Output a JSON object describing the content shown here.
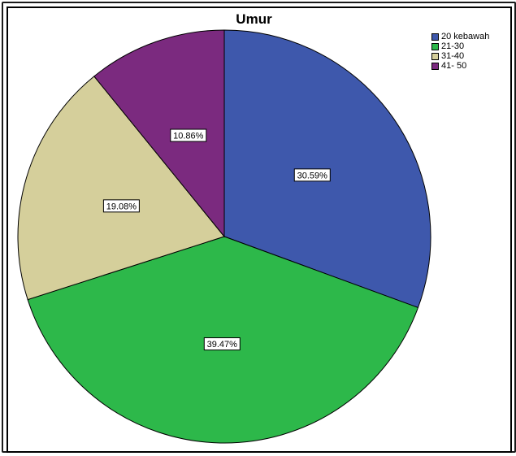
{
  "chart_data": {
    "type": "pie",
    "title": "Umur",
    "legend_position": "top-right",
    "slices": [
      {
        "label": "20 kebawah",
        "value": 30.59,
        "display": "30.59%",
        "color": "#3e58ac"
      },
      {
        "label": "21-30",
        "value": 39.47,
        "display": "39.47%",
        "color": "#2db84a"
      },
      {
        "label": "31-40",
        "value": 19.08,
        "display": "19.08%",
        "color": "#d5cf9b"
      },
      {
        "label": "41- 50",
        "value": 10.86,
        "display": "10.86%",
        "color": "#7b2a7f"
      }
    ]
  }
}
